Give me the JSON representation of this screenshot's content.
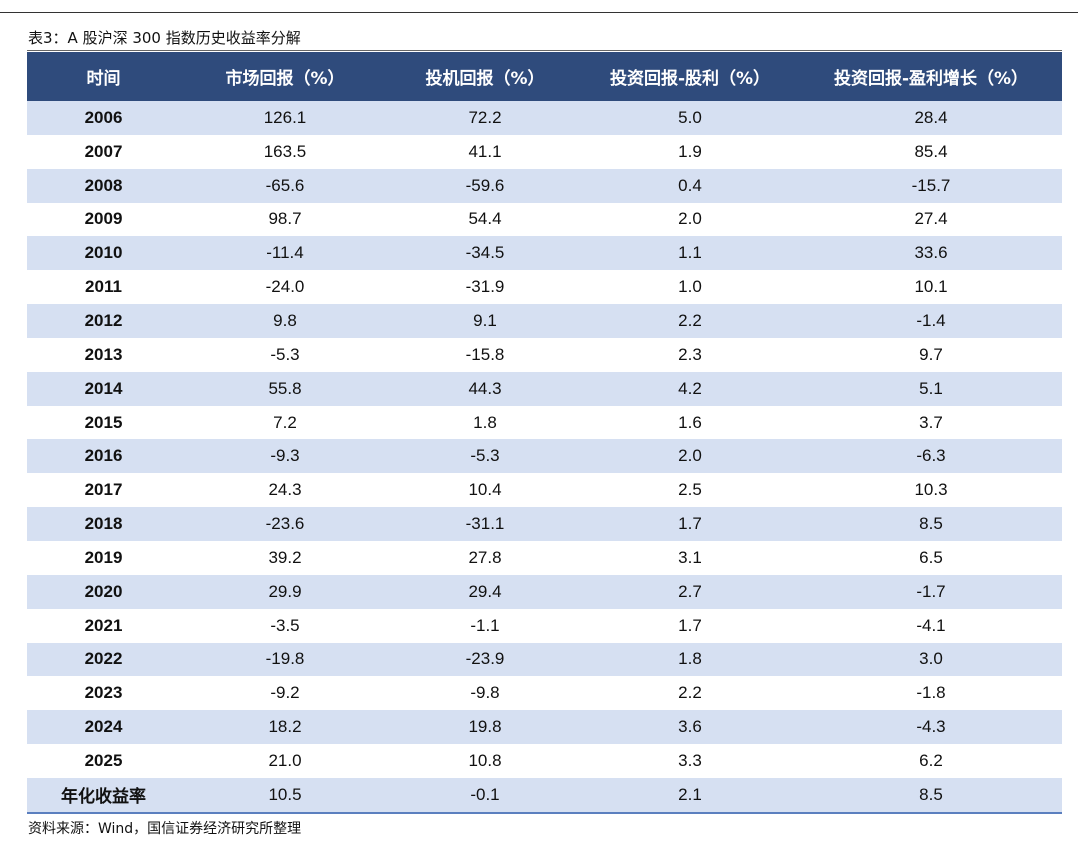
{
  "title": "表3：A 股沪深 300 指数历史收益率分解",
  "table": {
    "header": [
      "时间",
      "市场回报（%）",
      "投机回报（%）",
      "投资回报-股利（%）",
      "投资回报-盈利增长（%）"
    ],
    "rows": [
      [
        "2006",
        "126.1",
        "72.2",
        "5.0",
        "28.4"
      ],
      [
        "2007",
        "163.5",
        "41.1",
        "1.9",
        "85.4"
      ],
      [
        "2008",
        "-65.6",
        "-59.6",
        "0.4",
        "-15.7"
      ],
      [
        "2009",
        "98.7",
        "54.4",
        "2.0",
        "27.4"
      ],
      [
        "2010",
        "-11.4",
        "-34.5",
        "1.1",
        "33.6"
      ],
      [
        "2011",
        "-24.0",
        "-31.9",
        "1.0",
        "10.1"
      ],
      [
        "2012",
        "9.8",
        "9.1",
        "2.2",
        "-1.4"
      ],
      [
        "2013",
        "-5.3",
        "-15.8",
        "2.3",
        "9.7"
      ],
      [
        "2014",
        "55.8",
        "44.3",
        "4.2",
        "5.1"
      ],
      [
        "2015",
        "7.2",
        "1.8",
        "1.6",
        "3.7"
      ],
      [
        "2016",
        "-9.3",
        "-5.3",
        "2.0",
        "-6.3"
      ],
      [
        "2017",
        "24.3",
        "10.4",
        "2.5",
        "10.3"
      ],
      [
        "2018",
        "-23.6",
        "-31.1",
        "1.7",
        "8.5"
      ],
      [
        "2019",
        "39.2",
        "27.8",
        "3.1",
        "6.5"
      ],
      [
        "2020",
        "29.9",
        "29.4",
        "2.7",
        "-1.7"
      ],
      [
        "2021",
        "-3.5",
        "-1.1",
        "1.7",
        "-4.1"
      ],
      [
        "2022",
        "-19.8",
        "-23.9",
        "1.8",
        "3.0"
      ],
      [
        "2023",
        "-9.2",
        "-9.8",
        "2.2",
        "-1.8"
      ],
      [
        "2024",
        "18.2",
        "19.8",
        "3.6",
        "-4.3"
      ],
      [
        "2025",
        "21.0",
        "10.8",
        "3.3",
        "6.2"
      ],
      [
        "年化收益率",
        "10.5",
        "-0.1",
        "2.1",
        "8.5"
      ]
    ]
  },
  "source": "资料来源：Wind，国信证券经济研究所整理"
}
